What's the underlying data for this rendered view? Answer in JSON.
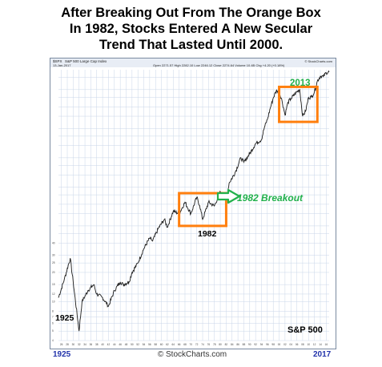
{
  "title_lines": [
    "After Breaking Out From The Orange Box",
    "In 1982, Stocks Entered A New Secular",
    "Trend That Lasted Until 2000."
  ],
  "chart_header": {
    "symbol": "$SPX",
    "name": "S&P 500 Large Cap Index",
    "date": "13-Jan-2017",
    "stats": "Open 2271.57  High 2282.10  Low 2246.12  Close 2274.64  Volume 10.4B  Chg +4.20 (+0.18%)",
    "source": "© StockCharts.com"
  },
  "annotations": {
    "label_2013": "2013",
    "label_1982": "1982",
    "label_1925": "1925",
    "breakout_text": "1982 Breakout",
    "series_label": "S&P 500"
  },
  "footer": {
    "left_year": "1925",
    "right_year": "2017",
    "credit": "StockCharts.com"
  },
  "colors": {
    "box": "#ff7f0e",
    "arrow": "#22b14c",
    "label_2013": "#22b14c",
    "line": "#1a1a1a",
    "grid": "#c9d6e8",
    "footer_year": "#2233aa"
  },
  "chart_data": {
    "type": "line",
    "title": "After Breaking Out From The Orange Box In 1982, Stocks Entered A New Secular Trend That Lasted Until 2000.",
    "series": [
      {
        "name": "S&P 500",
        "x": [
          1925,
          1927,
          1929,
          1930,
          1932,
          1933,
          1935,
          1937,
          1938,
          1940,
          1942,
          1944,
          1946,
          1947,
          1949,
          1950,
          1952,
          1954,
          1956,
          1957,
          1959,
          1961,
          1962,
          1964,
          1966,
          1968,
          1970,
          1972,
          1973,
          1974,
          1976,
          1978,
          1980,
          1982,
          1983,
          1985,
          1987,
          1988,
          1990,
          1992,
          1994,
          1995,
          1996,
          1997,
          1998,
          1999,
          2000,
          2001,
          2002,
          2003,
          2004,
          2006,
          2007,
          2008,
          2009,
          2010,
          2011,
          2012,
          2013,
          2014,
          2015,
          2016,
          2017
        ],
        "y": [
          11,
          17,
          28,
          16,
          5,
          10,
          13,
          15,
          12,
          11,
          9,
          13,
          16,
          15,
          16,
          20,
          25,
          35,
          45,
          42,
          57,
          70,
          58,
          85,
          80,
          105,
          80,
          118,
          97,
          70,
          105,
          96,
          135,
          110,
          165,
          210,
          300,
          270,
          330,
          420,
          460,
          615,
          740,
          970,
          1230,
          1460,
          1420,
          1150,
          820,
          1110,
          1210,
          1420,
          1500,
          800,
          900,
          1250,
          1260,
          1420,
          1840,
          2060,
          2040,
          2240,
          2275
        ]
      }
    ],
    "xlim": [
      1925,
      2017
    ],
    "ylim_log": [
      4,
      2400
    ],
    "scale": "log",
    "grid": true,
    "annotations": [
      {
        "text": "1982 Breakout",
        "x": 1982
      },
      {
        "text": "2013",
        "x": 2013
      },
      {
        "text": "1982",
        "x": 1982
      },
      {
        "text": "1925",
        "x": 1925
      }
    ],
    "boxes": [
      {
        "x0": 1966,
        "x1": 1982,
        "y0": 60,
        "y1": 130
      },
      {
        "x0": 2000,
        "x1": 2013,
        "y0": 700,
        "y1": 1600
      }
    ]
  }
}
